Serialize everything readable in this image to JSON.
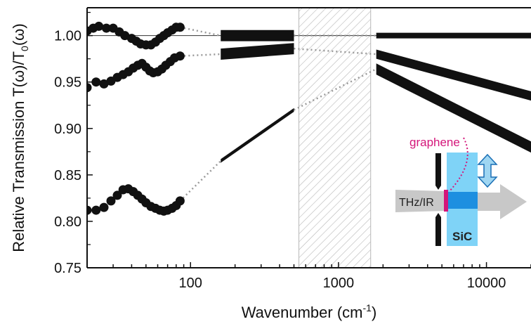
{
  "chart_data": {
    "type": "scatter",
    "xlabel": "Wavenumber (cm-1)",
    "xlabel_base": "Wavenumber (cm",
    "xlabel_sup": "-1",
    "xlabel_end": ")",
    "ylabel": "Relative Transmission T(ω)/T0(ω)",
    "ylabel_parts": {
      "a": "Relative Transmission T(ω)/T",
      "sub": "0",
      "b": "(ω)"
    },
    "x_scale": "log",
    "xlim": [
      20,
      20000
    ],
    "ylim": [
      0.75,
      1.03
    ],
    "x_ticks": [
      {
        "v": 100,
        "label": "100"
      },
      {
        "v": 1000,
        "label": "1000"
      },
      {
        "v": 10000,
        "label": "10000"
      }
    ],
    "y_ticks": [
      {
        "v": 0.75,
        "label": "0.75"
      },
      {
        "v": 0.8,
        "label": "0.80"
      },
      {
        "v": 0.85,
        "label": "0.85"
      },
      {
        "v": 0.9,
        "label": "0.90"
      },
      {
        "v": 0.95,
        "label": "0.95"
      },
      {
        "v": 1.0,
        "label": "1.00"
      }
    ],
    "reference_line": 1.0,
    "hatched_region": [
      540,
      1650
    ],
    "series": [
      {
        "points": [
          [
            20,
            1.005
          ],
          [
            22,
            1.008
          ],
          [
            24,
            1.01
          ],
          [
            27,
            1.008
          ],
          [
            30,
            1.008
          ],
          [
            33,
            1.004
          ],
          [
            36,
            1.0
          ],
          [
            40,
            0.997
          ],
          [
            43,
            0.994
          ],
          [
            46,
            0.991
          ],
          [
            50,
            0.99
          ],
          [
            54,
            0.99
          ],
          [
            58,
            0.993
          ],
          [
            62,
            0.997
          ],
          [
            66,
            1.0
          ],
          [
            70,
            1.003
          ],
          [
            75,
            1.006
          ],
          [
            80,
            1.009
          ],
          [
            85,
            1.009
          ]
        ],
        "segments": [
          {
            "x_start": 160,
            "x_end": 500,
            "y_start": 1.0,
            "y_end": 1.0,
            "band": 0.012
          },
          {
            "x_start": 1800,
            "x_end": 20000,
            "y_start": 1.0,
            "y_end": 1.0,
            "band": 0.006
          }
        ]
      },
      {
        "points": [
          [
            20,
            0.944
          ],
          [
            23,
            0.95
          ],
          [
            26,
            0.948
          ],
          [
            29,
            0.951
          ],
          [
            32,
            0.955
          ],
          [
            35,
            0.958
          ],
          [
            38,
            0.961
          ],
          [
            41,
            0.965
          ],
          [
            44,
            0.968
          ],
          [
            47,
            0.97
          ],
          [
            50,
            0.966
          ],
          [
            53,
            0.962
          ],
          [
            56,
            0.96
          ],
          [
            60,
            0.961
          ],
          [
            64,
            0.964
          ],
          [
            68,
            0.968
          ],
          [
            73,
            0.972
          ],
          [
            78,
            0.976
          ],
          [
            85,
            0.978
          ]
        ],
        "segments": [
          {
            "x_start": 160,
            "x_end": 500,
            "y_start": 0.98,
            "y_end": 0.986,
            "band": 0.012
          },
          {
            "x_start": 1800,
            "x_end": 20000,
            "y_start": 0.98,
            "y_end": 0.935,
            "band": 0.01
          }
        ]
      },
      {
        "points": [
          [
            20,
            0.812
          ],
          [
            23,
            0.812
          ],
          [
            26,
            0.815
          ],
          [
            29,
            0.822
          ],
          [
            32,
            0.828
          ],
          [
            35,
            0.834
          ],
          [
            38,
            0.835
          ],
          [
            41,
            0.832
          ],
          [
            44,
            0.828
          ],
          [
            47,
            0.824
          ],
          [
            50,
            0.82
          ],
          [
            54,
            0.816
          ],
          [
            58,
            0.814
          ],
          [
            62,
            0.812
          ],
          [
            66,
            0.811
          ],
          [
            70,
            0.812
          ],
          [
            75,
            0.814
          ],
          [
            80,
            0.817
          ],
          [
            85,
            0.822
          ]
        ],
        "segments": [
          {
            "x_start": 160,
            "x_end": 500,
            "y_start": 0.865,
            "y_end": 0.92,
            "band": 0.004
          },
          {
            "x_start": 1800,
            "x_end": 20000,
            "y_start": 0.964,
            "y_end": 0.88,
            "band": 0.012
          }
        ]
      }
    ],
    "inset": {
      "label_graphene": "graphene",
      "label_source": "THz/IR",
      "label_substrate": "SiC"
    }
  },
  "colors": {
    "data": "#111111",
    "dotted": "#9a9a9a",
    "hatch": "#b8b8b8",
    "graphene": "#d4167a",
    "substrate": "#7fd3f7",
    "beam": "#c8c8c8",
    "beam_in_substrate": "#1d8fe0",
    "arrow": "#9fd6f2"
  }
}
